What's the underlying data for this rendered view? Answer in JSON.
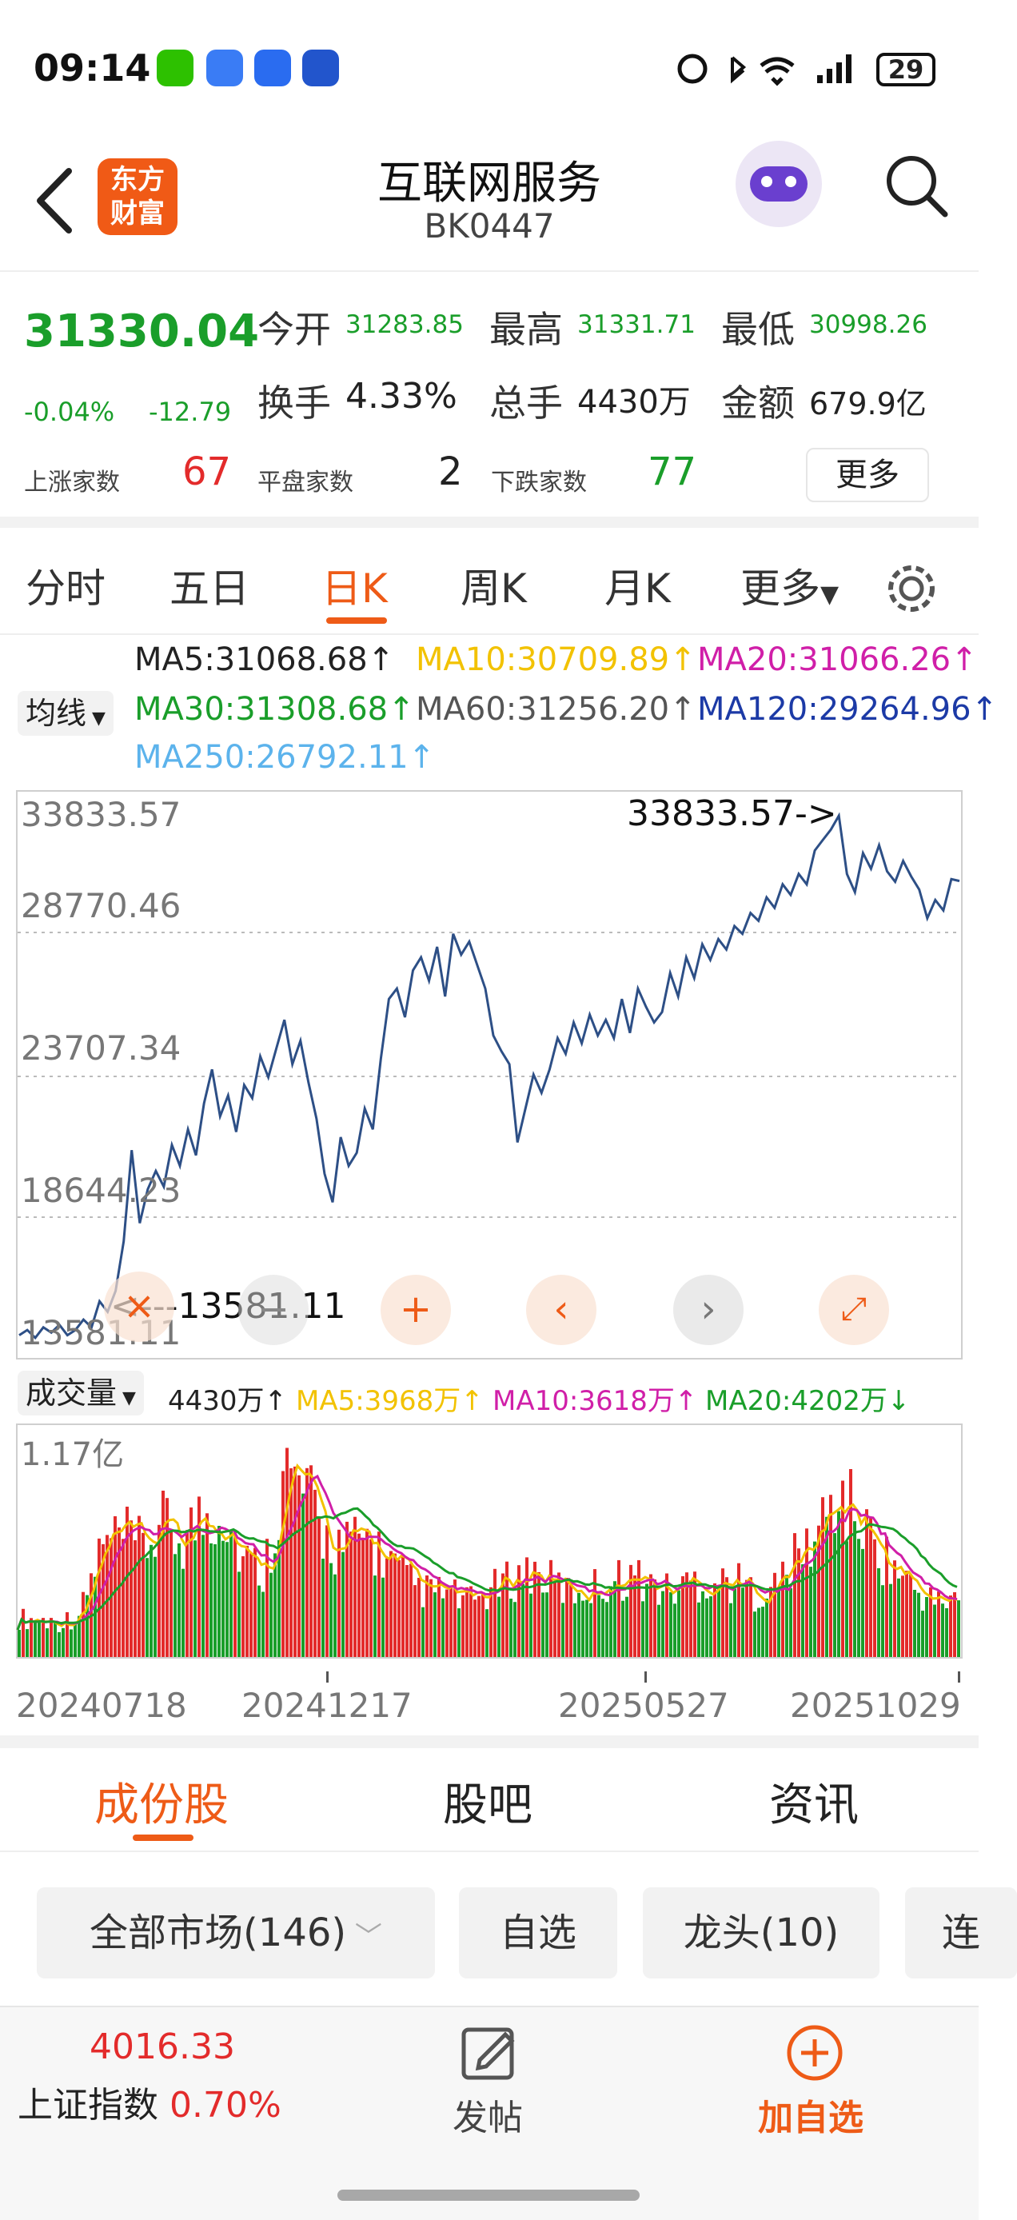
{
  "status_bar": {
    "time": "09:14",
    "battery": "29"
  },
  "header": {
    "back_icon": "chevron-left-icon",
    "logo_text": "东方财富",
    "title": "互联网服务",
    "code": "BK0447"
  },
  "quote": {
    "price": "31330.04",
    "change_pct": "-0.04%",
    "change": "-12.79",
    "open_label": "今开",
    "open": "31283.85",
    "high_label": "最高",
    "high": "31331.71",
    "low_label": "最低",
    "low": "30998.26",
    "turnover_label": "换手",
    "turnover": "4.33%",
    "volume_label": "总手",
    "volume": "4430万",
    "amount_label": "金额",
    "amount": "679.9亿",
    "up_label": "上涨家数",
    "up": "67",
    "flat_label": "平盘家数",
    "flat": "2",
    "down_label": "下跌家数",
    "down": "77",
    "more": "更多"
  },
  "periods": {
    "items": [
      "分时",
      "五日",
      "日K",
      "周K",
      "月K",
      "更多"
    ],
    "active": "日K"
  },
  "ma": {
    "selector": "均线",
    "ma5": "MA5:31068.68↑",
    "ma10": "MA10:30709.89↑",
    "ma20": "MA20:31066.26↑",
    "ma30": "MA30:31308.68↑",
    "ma60": "MA60:31256.20↑",
    "ma120": "MA120:29264.96↑",
    "ma250": "MA250:26792.11↑"
  },
  "chart_data": {
    "type": "line",
    "y_ticks": [
      "33833.57",
      "28770.46",
      "23707.34",
      "18644.23",
      "13581.11"
    ],
    "ylim": [
      13581.11,
      33833.57
    ],
    "max_annotation": "33833.57->",
    "min_annotation": "<---13581.11",
    "x_ticks": [
      "20240718",
      "20241217",
      "20250527",
      "20251029"
    ],
    "series": [
      {
        "values": [
          13900,
          14100,
          13800,
          14200,
          14000,
          14300,
          13900,
          14100,
          14500,
          14200,
          15200,
          14800,
          15600,
          17500,
          21000,
          18200,
          19500,
          20200,
          19600,
          21200,
          20400,
          21800,
          20800,
          22800,
          24100,
          22300,
          23100,
          21700,
          23500,
          23000,
          24600,
          23800,
          24900,
          26000,
          24300,
          25200,
          23600,
          22200,
          20100,
          19000,
          21500,
          20400,
          20900,
          22600,
          21800,
          24500,
          26800,
          27200,
          26100,
          27900,
          28400,
          27500,
          28800,
          26900,
          29300,
          28500,
          29000,
          28100,
          27200,
          25400,
          24800,
          24300,
          21300,
          22600,
          23900,
          23200,
          24100,
          25300,
          24700,
          25900,
          25100,
          26200,
          25400,
          26000,
          25300,
          26800,
          25500,
          27200,
          26500,
          25900,
          26300,
          27800,
          26900,
          28400,
          27600,
          28900,
          28300,
          29100,
          28700,
          29600,
          29300,
          30100,
          29800,
          30700,
          30300,
          31200,
          30800,
          31600,
          31200,
          32500,
          32900,
          33300,
          33833,
          31600,
          30900,
          32400,
          31800,
          32700,
          31700,
          31300,
          32100,
          31500,
          31000,
          29900,
          30600,
          30200,
          31400,
          31330
        ]
      }
    ],
    "volume": {
      "label": "成交量",
      "current": "4430万↑",
      "ma5": "MA5:3968万↑",
      "ma10": "MA10:3618万↑",
      "ma20": "MA20:4202万↓",
      "max_label": "1.17亿"
    }
  },
  "subtabs": {
    "items": [
      "成份股",
      "股吧",
      "资讯"
    ],
    "active": "成份股"
  },
  "filters": [
    "全部市场(146)",
    "自选",
    "龙头(10)",
    "连"
  ],
  "bottom": {
    "index_value": "4016.33",
    "index_name": "上证指数",
    "index_change": "0.70%",
    "post": "发帖",
    "add": "加自选"
  },
  "colors": {
    "accent": "#ee5b17",
    "up": "#e32b2b",
    "down": "#1a9e2a",
    "line": "#2d4f86"
  }
}
